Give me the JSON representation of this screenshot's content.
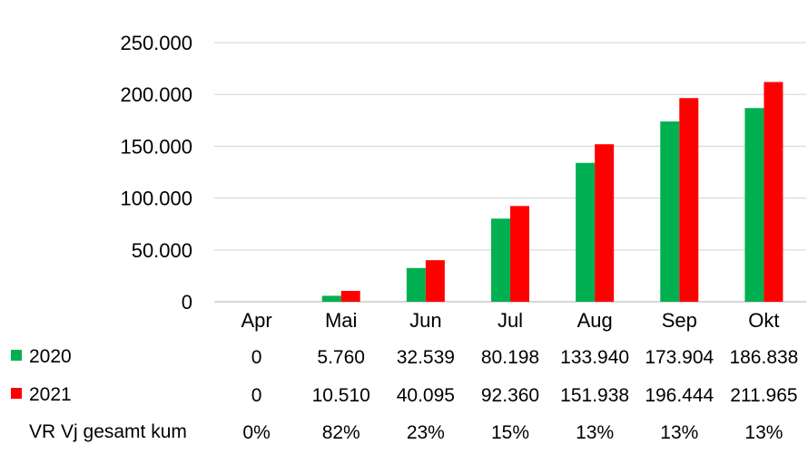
{
  "chart_data": {
    "type": "bar",
    "title": "",
    "xlabel": "",
    "ylabel": "",
    "categories": [
      "Apr",
      "Mai",
      "Jun",
      "Jul",
      "Aug",
      "Sep",
      "Okt"
    ],
    "series": [
      {
        "name": "2020",
        "color": "#00b050",
        "values": [
          0,
          5760,
          32539,
          80198,
          133940,
          173904,
          186838
        ],
        "labels": [
          "0",
          "5.760",
          "32.539",
          "80.198",
          "133.940",
          "173.904",
          "186.838"
        ]
      },
      {
        "name": "2021",
        "color": "#ff0000",
        "values": [
          0,
          10510,
          40095,
          92360,
          151938,
          196444,
          211965
        ],
        "labels": [
          "0",
          "10.510",
          "40.095",
          "92.360",
          "151.938",
          "196.444",
          "211.965"
        ]
      }
    ],
    "ylim": [
      0,
      250000
    ],
    "yticks": [
      0,
      50000,
      100000,
      150000,
      200000,
      250000
    ],
    "ytick_labels": [
      "0",
      "50.000",
      "100.000",
      "150.000",
      "200.000",
      "250.000"
    ],
    "grid": true,
    "data_table": {
      "extra_row": {
        "name": "VR Vj gesamt kum",
        "labels": [
          "0%",
          "82%",
          "23%",
          "15%",
          "13%",
          "13%",
          "13%"
        ]
      }
    }
  }
}
